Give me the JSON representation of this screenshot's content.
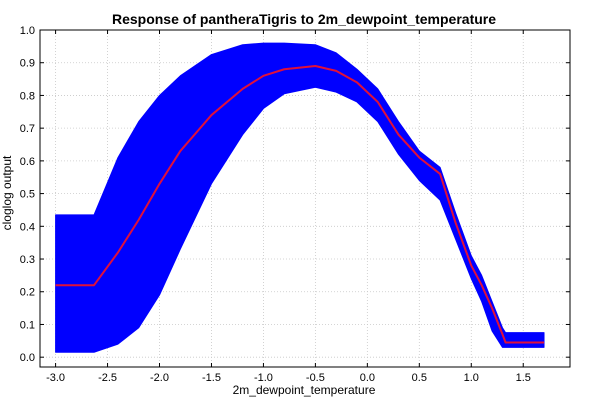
{
  "chart_data": {
    "type": "area",
    "title": "Response of pantheraTigris to 2m_dewpoint_temperature",
    "xlabel": "2m_dewpoint_temperature",
    "ylabel": "cloglog output",
    "xlim": [
      -3.15,
      1.95
    ],
    "ylim": [
      -0.03,
      1.0
    ],
    "grid": true,
    "legend": "none",
    "x_ticks": [
      -3.0,
      -2.5,
      -2.0,
      -1.5,
      -1.0,
      -0.5,
      0.0,
      0.5,
      1.0,
      1.5
    ],
    "x_tick_labels": [
      "-3.0",
      "-2.5",
      "-2.0",
      "-1.5",
      "-1.0",
      "-0.5",
      "0.0",
      "0.5",
      "1.0",
      "1.5"
    ],
    "y_ticks": [
      0.0,
      0.1,
      0.2,
      0.3,
      0.4,
      0.5,
      0.6,
      0.7,
      0.8,
      0.9,
      1.0
    ],
    "y_tick_labels": [
      "0.0",
      "0.1",
      "0.2",
      "0.3",
      "0.4",
      "0.5",
      "0.6",
      "0.7",
      "0.8",
      "0.9",
      "1.0"
    ],
    "colors": {
      "band": "#0000ff",
      "line": "#e0103a",
      "grid": "#c8c8c8",
      "axis": "#000000"
    },
    "series": [
      {
        "kind": "mean",
        "x": [
          -3.0,
          -2.63,
          -2.4,
          -2.2,
          -2.0,
          -1.8,
          -1.5,
          -1.2,
          -1.0,
          -0.8,
          -0.5,
          -0.3,
          -0.1,
          0.1,
          0.3,
          0.5,
          0.7,
          0.85,
          1.0,
          1.1,
          1.2,
          1.3,
          1.33,
          1.5,
          1.7
        ],
        "y": [
          0.22,
          0.22,
          0.32,
          0.42,
          0.53,
          0.63,
          0.74,
          0.82,
          0.86,
          0.88,
          0.89,
          0.875,
          0.84,
          0.78,
          0.68,
          0.61,
          0.56,
          0.41,
          0.28,
          0.22,
          0.15,
          0.07,
          0.045,
          0.045,
          0.045
        ]
      },
      {
        "kind": "upper",
        "x": [
          -3.0,
          -2.63,
          -2.4,
          -2.2,
          -2.0,
          -1.8,
          -1.5,
          -1.2,
          -1.0,
          -0.8,
          -0.5,
          -0.3,
          -0.1,
          0.1,
          0.3,
          0.5,
          0.7,
          0.85,
          1.0,
          1.1,
          1.2,
          1.3,
          1.33,
          1.5,
          1.7
        ],
        "y": [
          0.435,
          0.435,
          0.61,
          0.72,
          0.8,
          0.86,
          0.925,
          0.955,
          0.96,
          0.96,
          0.955,
          0.93,
          0.88,
          0.82,
          0.72,
          0.63,
          0.58,
          0.44,
          0.31,
          0.25,
          0.17,
          0.09,
          0.075,
          0.075,
          0.075
        ]
      },
      {
        "kind": "lower",
        "x": [
          -3.0,
          -2.63,
          -2.4,
          -2.2,
          -2.0,
          -1.8,
          -1.5,
          -1.2,
          -1.0,
          -0.8,
          -0.5,
          -0.3,
          -0.1,
          0.1,
          0.3,
          0.5,
          0.7,
          0.85,
          1.0,
          1.1,
          1.2,
          1.3,
          1.33,
          1.5,
          1.7
        ],
        "y": [
          0.015,
          0.015,
          0.04,
          0.09,
          0.19,
          0.33,
          0.53,
          0.68,
          0.76,
          0.805,
          0.825,
          0.81,
          0.78,
          0.72,
          0.62,
          0.54,
          0.48,
          0.36,
          0.24,
          0.17,
          0.08,
          0.03,
          0.03,
          0.03,
          0.03
        ]
      }
    ]
  }
}
